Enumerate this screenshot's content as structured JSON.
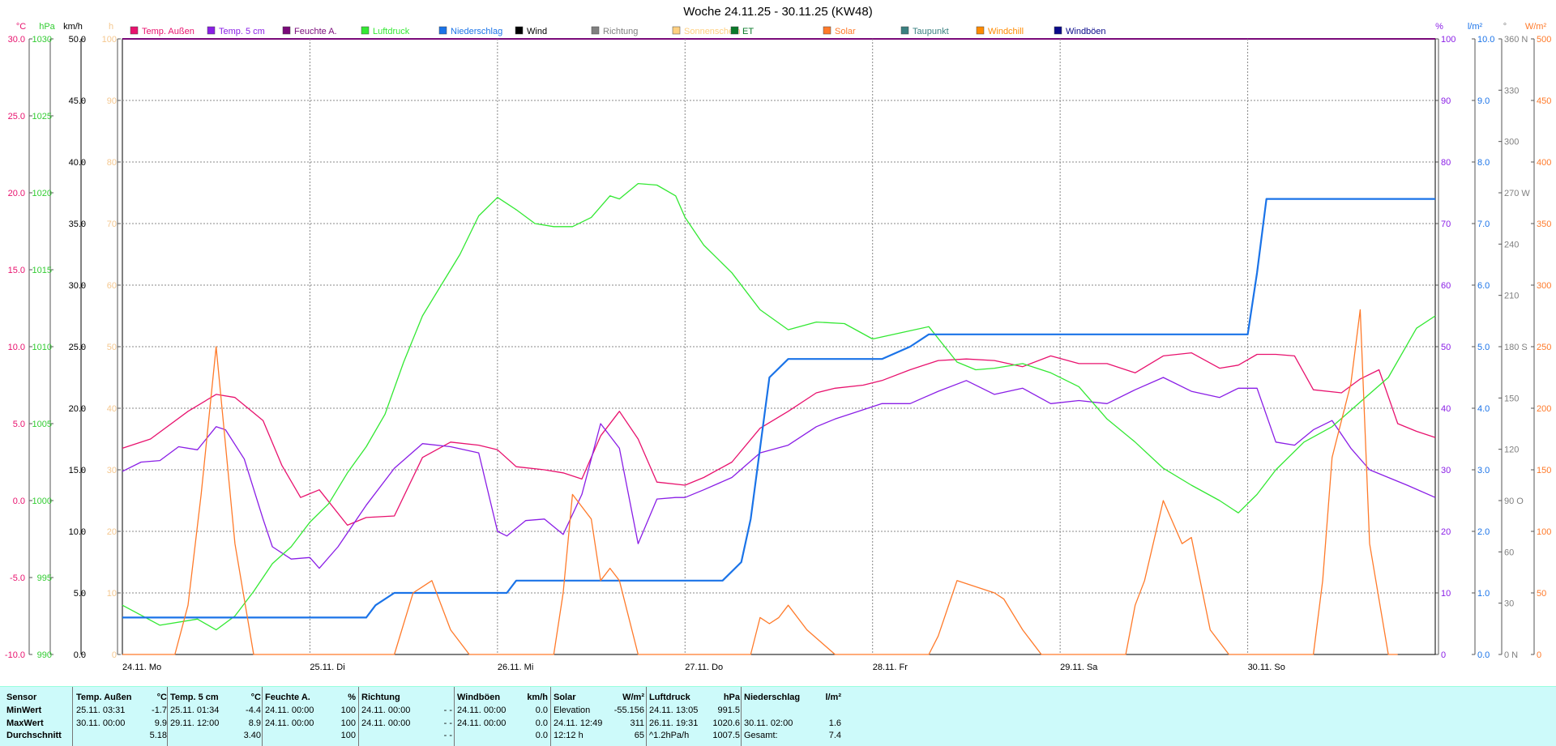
{
  "chart_data": {
    "type": "line",
    "title": "Woche 24.11.25 - 30.11.25 (KW48)",
    "x_labels": [
      "24.11. Mo",
      "25.11. Di",
      "26.11. Mi",
      "27.11. Do",
      "28.11. Fr",
      "29.11. Sa",
      "30.11. So"
    ],
    "legend": [
      {
        "name": "Temp. Außen",
        "color": "#e8126e"
      },
      {
        "name": "Temp. 5 cm",
        "color": "#8a1ee6"
      },
      {
        "name": "Feuchte A.",
        "color": "#7a0a7a"
      },
      {
        "name": "Luftdruck",
        "color": "#33e833"
      },
      {
        "name": "Niederschlag",
        "color": "#1a73e8"
      },
      {
        "name": "Wind",
        "color": "#000000"
      },
      {
        "name": "Richtung",
        "color": "#808080"
      },
      {
        "name": "Sonnenschein",
        "color": "#ffd080"
      },
      {
        "name": "ET",
        "color": "#0a7a2a"
      },
      {
        "name": "Solar",
        "color": "#ff7a2a"
      },
      {
        "name": "Taupunkt",
        "color": "#3a8080"
      },
      {
        "name": "Windchill",
        "color": "#ff8a00"
      },
      {
        "name": "Windböen",
        "color": "#0a0a8a"
      }
    ],
    "left_axes": [
      {
        "unit": "°C",
        "color": "#e8126e",
        "ticks": [
          "30.0",
          "25.0",
          "20.0",
          "15.0",
          "10.0",
          "5.0",
          "0.0",
          "-5.0",
          "-10.0"
        ]
      },
      {
        "unit": "hPa",
        "color": "#33cc33",
        "ticks": [
          "1030",
          "1025",
          "1020",
          "1015",
          "1010",
          "1005",
          "1000",
          "995",
          "990"
        ]
      },
      {
        "unit": "km/h",
        "color": "#000000",
        "ticks": [
          "50.0",
          "45.0",
          "40.0",
          "35.0",
          "30.0",
          "25.0",
          "20.0",
          "15.0",
          "10.0",
          "5.0",
          "0.0"
        ]
      },
      {
        "unit": "h",
        "color": "#f5c890",
        "ticks": [
          "100",
          "90",
          "80",
          "70",
          "60",
          "50",
          "40",
          "30",
          "20",
          "10",
          "0"
        ]
      }
    ],
    "right_axes": [
      {
        "unit": "%",
        "color": "#8a1ee6",
        "ticks": [
          "100",
          "90",
          "80",
          "70",
          "60",
          "50",
          "40",
          "30",
          "20",
          "10",
          "0"
        ]
      },
      {
        "unit": "l/m²",
        "color": "#1a73e8",
        "ticks": [
          "10.0",
          "9.0",
          "8.0",
          "7.0",
          "6.0",
          "5.0",
          "4.0",
          "3.0",
          "2.0",
          "1.0",
          "0.0"
        ]
      },
      {
        "unit": "°",
        "color": "#808080",
        "ticks": [
          "360 N",
          "330",
          "300",
          "270 W",
          "240",
          "210",
          "180 S",
          "150",
          "120",
          "90 O",
          "60",
          "30",
          "0 N"
        ]
      },
      {
        "unit": "W/m²",
        "color": "#ff7a2a",
        "ticks": [
          "500",
          "450",
          "400",
          "350",
          "300",
          "250",
          "200",
          "150",
          "100",
          "50",
          "0"
        ]
      }
    ],
    "series": [
      {
        "name": "Temp. Außen",
        "color": "#e8126e",
        "axis": "°C",
        "ylim": [
          -10,
          30
        ],
        "x": [
          0,
          0.15,
          0.35,
          0.5,
          0.6,
          0.75,
          0.85,
          0.95,
          1.05,
          1.2,
          1.3,
          1.45,
          1.6,
          1.75,
          1.9,
          2.0,
          2.1,
          2.25,
          2.35,
          2.45,
          2.55,
          2.65,
          2.75,
          2.85,
          3.0,
          3.1,
          3.25,
          3.4,
          3.55,
          3.7,
          3.8,
          3.95,
          4.05,
          4.2,
          4.35,
          4.5,
          4.65,
          4.8,
          4.95,
          5.1,
          5.25,
          5.4,
          5.55,
          5.7,
          5.85,
          5.95,
          6.05,
          6.15,
          6.25,
          6.35,
          6.5,
          6.6,
          6.7,
          6.8,
          6.9,
          7.0
        ],
        "y": [
          3.4,
          4.0,
          5.8,
          6.9,
          6.7,
          5.2,
          2.3,
          0.2,
          0.7,
          -1.6,
          -1.1,
          -1.0,
          2.8,
          3.8,
          3.6,
          3.3,
          2.2,
          2.0,
          1.8,
          1.4,
          4.2,
          5.8,
          4.0,
          1.2,
          1.0,
          1.5,
          2.5,
          4.7,
          5.8,
          7.0,
          7.3,
          7.5,
          7.8,
          8.5,
          9.1,
          9.2,
          9.1,
          8.7,
          9.4,
          8.9,
          8.9,
          8.3,
          9.4,
          9.6,
          8.6,
          8.8,
          9.5,
          9.5,
          9.4,
          7.2,
          7.0,
          7.9,
          8.5,
          5.0,
          4.5,
          4.1
        ]
      },
      {
        "name": "Temp. 5 cm",
        "color": "#8a1ee6",
        "axis": "°C",
        "ylim": [
          -10,
          30
        ],
        "x": [
          0,
          0.1,
          0.2,
          0.3,
          0.4,
          0.5,
          0.55,
          0.65,
          0.75,
          0.8,
          0.9,
          1.0,
          1.05,
          1.15,
          1.3,
          1.45,
          1.6,
          1.75,
          1.9,
          2.0,
          2.05,
          2.15,
          2.25,
          2.35,
          2.45,
          2.55,
          2.65,
          2.75,
          2.85,
          2.95,
          3.0,
          3.1,
          3.25,
          3.4,
          3.55,
          3.7,
          3.8,
          3.95,
          4.05,
          4.2,
          4.35,
          4.5,
          4.65,
          4.8,
          4.95,
          5.1,
          5.25,
          5.4,
          5.55,
          5.7,
          5.85,
          5.95,
          6.05,
          6.15,
          6.25,
          6.35,
          6.45,
          6.55,
          6.65,
          6.75,
          6.85,
          7.0
        ],
        "y": [
          1.9,
          2.5,
          2.6,
          3.5,
          3.3,
          4.8,
          4.6,
          2.7,
          -1.2,
          -3.0,
          -3.8,
          -3.7,
          -4.4,
          -3.0,
          -0.3,
          2.1,
          3.7,
          3.5,
          3.1,
          -2.0,
          -2.3,
          -1.3,
          -1.2,
          -2.2,
          0.4,
          5.0,
          3.4,
          -2.8,
          0.1,
          0.2,
          0.2,
          0.7,
          1.5,
          3.1,
          3.6,
          4.8,
          5.3,
          5.9,
          6.3,
          6.3,
          7.1,
          7.8,
          6.9,
          7.3,
          6.3,
          6.5,
          6.3,
          7.2,
          8.0,
          7.1,
          6.7,
          7.3,
          7.3,
          3.8,
          3.6,
          4.6,
          5.2,
          3.4,
          2.0,
          1.5,
          1.0,
          0.2
        ]
      },
      {
        "name": "Luftdruck",
        "color": "#33e833",
        "axis": "hPa",
        "ylim": [
          990,
          1030
        ],
        "x": [
          0,
          0.2,
          0.4,
          0.5,
          0.6,
          0.7,
          0.8,
          0.9,
          1.0,
          1.1,
          1.2,
          1.3,
          1.4,
          1.5,
          1.6,
          1.7,
          1.8,
          1.9,
          2.0,
          2.1,
          2.2,
          2.3,
          2.4,
          2.5,
          2.6,
          2.65,
          2.75,
          2.85,
          2.95,
          3.0,
          3.1,
          3.25,
          3.4,
          3.55,
          3.7,
          3.85,
          4.0,
          4.15,
          4.3,
          4.45,
          4.55,
          4.65,
          4.8,
          4.95,
          5.1,
          5.25,
          5.4,
          5.55,
          5.7,
          5.85,
          5.95,
          6.05,
          6.15,
          6.3,
          6.45,
          6.6,
          6.75,
          6.9,
          7.0
        ],
        "y": [
          993.2,
          991.9,
          992.3,
          991.6,
          992.5,
          994.1,
          995.9,
          997.0,
          998.6,
          999.8,
          1001.8,
          1003.5,
          1005.6,
          1009.0,
          1012.0,
          1014.0,
          1016.0,
          1018.5,
          1019.7,
          1018.9,
          1018.0,
          1017.8,
          1017.8,
          1018.4,
          1019.8,
          1019.6,
          1020.6,
          1020.5,
          1019.8,
          1018.4,
          1016.6,
          1014.8,
          1012.4,
          1011.1,
          1011.6,
          1011.5,
          1010.5,
          1010.9,
          1011.3,
          1009.0,
          1008.5,
          1008.6,
          1008.9,
          1008.3,
          1007.4,
          1005.3,
          1003.8,
          1002.1,
          1001.0,
          1000.0,
          999.2,
          1000.4,
          1002.0,
          1003.8,
          1004.8,
          1006.4,
          1008.0,
          1011.2,
          1012.0
        ]
      },
      {
        "name": "Niederschlag",
        "color": "#1a73e8",
        "axis": "l/m²",
        "ylim": [
          0,
          10
        ],
        "type": "step",
        "x": [
          0,
          1.3,
          1.35,
          1.45,
          2.05,
          2.1,
          3.2,
          3.3,
          3.35,
          3.45,
          3.55,
          3.7,
          4.05,
          4.2,
          4.3,
          6.0,
          6.05,
          6.1,
          7.0
        ],
        "y": [
          0.6,
          0.6,
          0.8,
          1.0,
          1.0,
          1.2,
          1.2,
          1.5,
          2.2,
          4.5,
          4.8,
          4.8,
          4.8,
          5.0,
          5.2,
          5.2,
          6.2,
          7.4,
          7.4
        ]
      },
      {
        "name": "Solar",
        "color": "#ff7a2a",
        "axis": "W/m²",
        "ylim": [
          0,
          500
        ],
        "x": [
          0,
          0.28,
          0.35,
          0.42,
          0.5,
          0.6,
          0.7,
          0.75,
          1.45,
          1.55,
          1.6,
          1.65,
          1.75,
          1.85,
          2.3,
          2.35,
          2.4,
          2.5,
          2.55,
          2.6,
          2.65,
          2.75,
          2.8,
          3.35,
          3.4,
          3.45,
          3.5,
          3.55,
          3.65,
          3.8,
          4.3,
          4.35,
          4.45,
          4.55,
          4.65,
          4.7,
          4.8,
          4.9,
          5.35,
          5.4,
          5.45,
          5.55,
          5.65,
          5.7,
          5.8,
          5.9,
          6.35,
          6.4,
          6.45,
          6.55,
          6.6,
          6.65,
          6.75,
          6.8
        ],
        "y": [
          0,
          0,
          40,
          130,
          250,
          90,
          0,
          0,
          0,
          50,
          55,
          60,
          20,
          0,
          0,
          50,
          130,
          110,
          60,
          70,
          60,
          0,
          0,
          0,
          30,
          25,
          30,
          40,
          20,
          0,
          0,
          15,
          60,
          55,
          50,
          45,
          20,
          0,
          0,
          40,
          60,
          125,
          90,
          95,
          20,
          0,
          0,
          60,
          160,
          220,
          280,
          90,
          0,
          0
        ]
      }
    ]
  },
  "table": {
    "columns": [
      {
        "title": "Sensor",
        "unit": "",
        "rows": [
          "MinWert",
          "MaxWert",
          "Durchschnitt"
        ]
      },
      {
        "title": "Temp. Außen",
        "unit": "°C",
        "cells": [
          [
            "25.11.  03:31",
            "-1.7"
          ],
          [
            "30.11.  00:00",
            "9.9"
          ],
          [
            "",
            "5.18"
          ]
        ]
      },
      {
        "title": "Temp. 5 cm",
        "unit": "°C",
        "cells": [
          [
            "25.11.  01:34",
            "-4.4"
          ],
          [
            "29.11.  12:00",
            "8.9"
          ],
          [
            "",
            "3.40"
          ]
        ]
      },
      {
        "title": "Feuchte A.",
        "unit": "%",
        "cells": [
          [
            "24.11.  00:00",
            "100"
          ],
          [
            "24.11.  00:00",
            "100"
          ],
          [
            "",
            "100"
          ]
        ]
      },
      {
        "title": "Richtung",
        "unit": "",
        "cells": [
          [
            "24.11.  00:00",
            "- -"
          ],
          [
            "24.11.  00:00",
            "- -"
          ],
          [
            "",
            "- -"
          ]
        ]
      },
      {
        "title": "Windböen",
        "unit": "km/h",
        "cells": [
          [
            "24.11.  00:00",
            "0.0"
          ],
          [
            "24.11.  00:00",
            "0.0"
          ],
          [
            "",
            "0.0"
          ]
        ]
      },
      {
        "title": "Solar",
        "unit": "W/m²",
        "cells": [
          [
            "Elevation",
            "-55.156"
          ],
          [
            "24.11.  12:49",
            "311"
          ],
          [
            "12:12 h",
            "65"
          ]
        ]
      },
      {
        "title": "Luftdruck",
        "unit": "hPa",
        "cells": [
          [
            "24.11.  13:05",
            "991.5"
          ],
          [
            "26.11.  19:31",
            "1020.6"
          ],
          [
            "^1.2hPa/h",
            "1007.5"
          ]
        ]
      },
      {
        "title": "Niederschlag",
        "unit": "l/m²",
        "cells": [
          [
            "",
            ""
          ],
          [
            "30.11.  02:00",
            "1.6"
          ],
          [
            "Gesamt:",
            "7.4"
          ]
        ]
      }
    ]
  }
}
